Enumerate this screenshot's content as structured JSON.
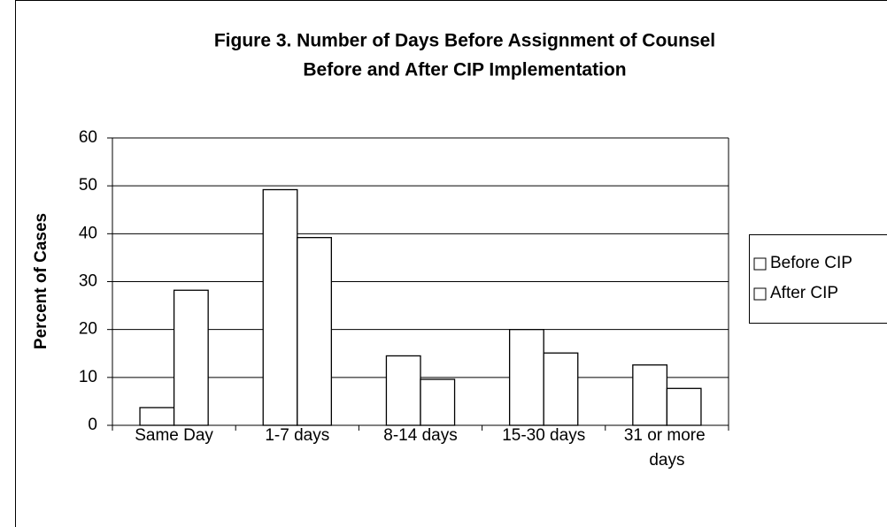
{
  "chart_data": {
    "type": "bar",
    "title": [
      "Figure 3. Number of Days Before Assignment of Counsel",
      "Before and After CIP Implementation"
    ],
    "ylabel": "Percent of Cases",
    "categories": [
      "Same Day",
      "1-7 days",
      "8-14 days",
      "15-30 days",
      "31 or more days"
    ],
    "series": [
      {
        "name": "Before CIP",
        "color": "#ffffff",
        "values": [
          3.7,
          49.2,
          14.5,
          20,
          12.6
        ]
      },
      {
        "name": "After CIP",
        "color": "#ffffff",
        "values": [
          28.2,
          39.2,
          9.6,
          15.1,
          7.7
        ]
      }
    ],
    "ylim": [
      0,
      60
    ],
    "yticks": [
      0,
      10,
      20,
      30,
      40,
      50,
      60
    ],
    "grid": true,
    "legend": "right"
  }
}
